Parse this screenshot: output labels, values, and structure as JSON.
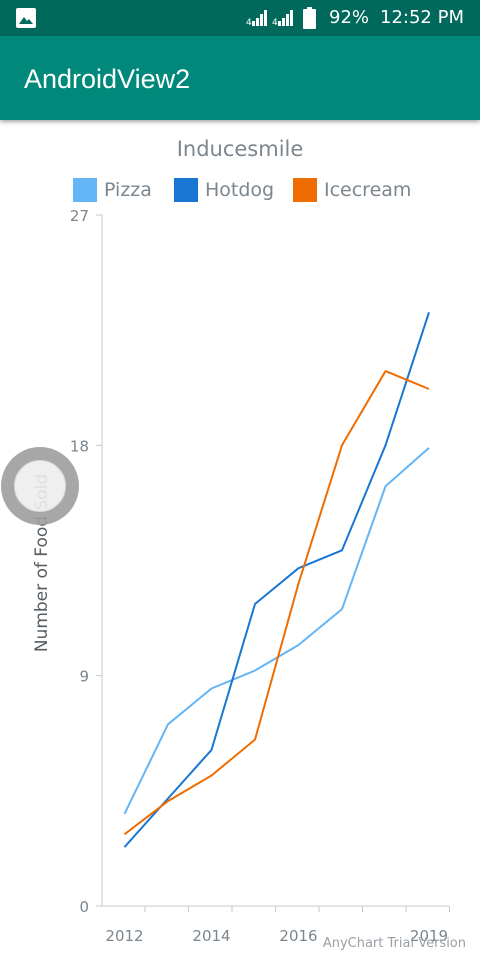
{
  "status_bar": {
    "battery_percent": "92%",
    "time": "12:52 PM",
    "icons": [
      "gallery-icon",
      "signal-icon",
      "signal-icon",
      "battery-icon"
    ]
  },
  "app_bar": {
    "title": "AndroidView2",
    "color": "#00897b"
  },
  "chart_data": {
    "type": "line",
    "title": "Inducesmile",
    "ylabel": "Number of Food Sold",
    "xlabel": "",
    "ylim": [
      0,
      27
    ],
    "yticks": [
      "0",
      "9",
      "18",
      "27"
    ],
    "x_tick_labels": [
      "2012",
      "2014",
      "2016",
      "2019"
    ],
    "x": [
      2012,
      2013,
      2014,
      2015,
      2016,
      2017,
      2018,
      2019
    ],
    "grid": false,
    "legend_position": "top",
    "series": [
      {
        "name": "Pizza",
        "color": "#64b5f6",
        "values": [
          3.6,
          7.1,
          8.5,
          9.2,
          10.2,
          11.6,
          16.4,
          17.9
        ]
      },
      {
        "name": "Hotdog",
        "color": "#1976d2",
        "values": [
          2.3,
          4.2,
          6.1,
          11.8,
          13.2,
          13.9,
          18.0,
          23.2
        ]
      },
      {
        "name": "Icecream",
        "color": "#ef6c00",
        "values": [
          2.8,
          4.1,
          5.1,
          6.5,
          12.6,
          18.0,
          20.9,
          20.2
        ]
      }
    ],
    "watermark": "AnyChart Trial Version"
  }
}
